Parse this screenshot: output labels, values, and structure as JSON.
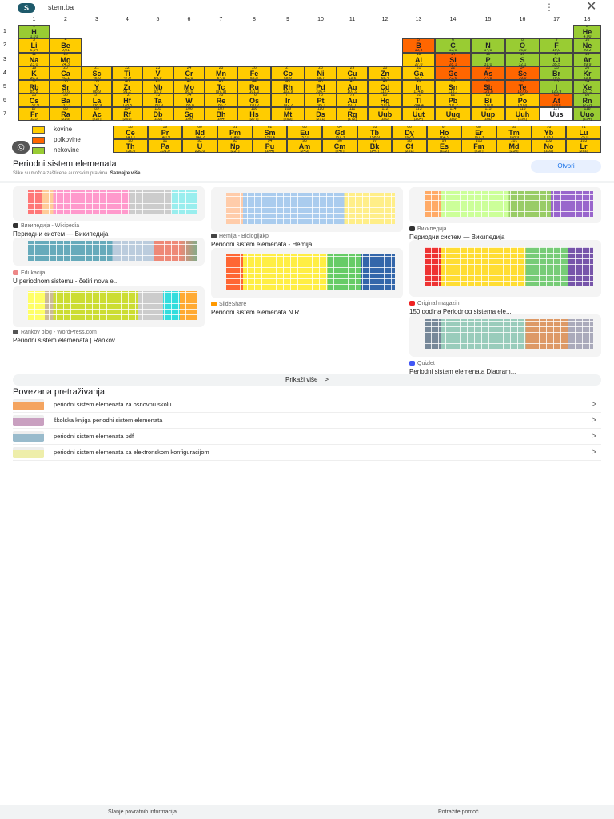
{
  "topbar": {
    "site": "stem.ba",
    "logo": "S",
    "more_icon": "more-vert-icon",
    "close_icon": "close-icon"
  },
  "table": {
    "colors": {
      "metal": "#ffcc00",
      "metalloid": "#ff6600",
      "nonmetal": "#99cc33",
      "unknown": "#ffffff"
    },
    "groups": [
      "1",
      "2",
      "3",
      "4",
      "5",
      "6",
      "7",
      "8",
      "9",
      "10",
      "11",
      "12",
      "13",
      "14",
      "15",
      "16",
      "17",
      "18"
    ],
    "periods": [
      "1",
      "2",
      "3",
      "4",
      "5",
      "6",
      "7"
    ],
    "elements": [
      [
        1,
        "H",
        "1,01",
        1,
        1,
        "nonmetal"
      ],
      [
        2,
        "He",
        "4,00",
        1,
        18,
        "nonmetal"
      ],
      [
        3,
        "Li",
        "6,94",
        2,
        1,
        "metal"
      ],
      [
        4,
        "Be",
        "9,01",
        2,
        2,
        "metal"
      ],
      [
        5,
        "B",
        "10,8",
        2,
        13,
        "metalloid"
      ],
      [
        6,
        "C",
        "12,0",
        2,
        14,
        "nonmetal"
      ],
      [
        7,
        "N",
        "14,0",
        2,
        15,
        "nonmetal"
      ],
      [
        8,
        "O",
        "16,0",
        2,
        16,
        "nonmetal"
      ],
      [
        9,
        "F",
        "19,0",
        2,
        17,
        "nonmetal"
      ],
      [
        10,
        "Ne",
        "20,2",
        2,
        18,
        "nonmetal"
      ],
      [
        11,
        "Na",
        "23,0",
        3,
        1,
        "metal"
      ],
      [
        12,
        "Mg",
        "24,3",
        3,
        2,
        "metal"
      ],
      [
        13,
        "Al",
        "27,0",
        3,
        13,
        "metal"
      ],
      [
        14,
        "Si",
        "28,1",
        3,
        14,
        "metalloid"
      ],
      [
        15,
        "P",
        "31,0",
        3,
        15,
        "nonmetal"
      ],
      [
        16,
        "S",
        "32,1",
        3,
        16,
        "nonmetal"
      ],
      [
        17,
        "Cl",
        "35,5",
        3,
        17,
        "nonmetal"
      ],
      [
        18,
        "Ar",
        "39,9",
        3,
        18,
        "nonmetal"
      ],
      [
        19,
        "K",
        "39,1",
        4,
        1,
        "metal"
      ],
      [
        20,
        "Ca",
        "40,1",
        4,
        2,
        "metal"
      ],
      [
        21,
        "Sc",
        "45,0",
        4,
        3,
        "metal"
      ],
      [
        22,
        "Ti",
        "47,9",
        4,
        4,
        "metal"
      ],
      [
        23,
        "V",
        "50,9",
        4,
        5,
        "metal"
      ],
      [
        24,
        "Cr",
        "52,0",
        4,
        6,
        "metal"
      ],
      [
        25,
        "Mn",
        "54,9",
        4,
        7,
        "metal"
      ],
      [
        26,
        "Fe",
        "55,8",
        4,
        8,
        "metal"
      ],
      [
        27,
        "Co",
        "58,9",
        4,
        9,
        "metal"
      ],
      [
        28,
        "Ni",
        "58,7",
        4,
        10,
        "metal"
      ],
      [
        29,
        "Cu",
        "63,5",
        4,
        11,
        "metal"
      ],
      [
        30,
        "Zn",
        "65,4",
        4,
        12,
        "metal"
      ],
      [
        31,
        "Ga",
        "69,7",
        4,
        13,
        "metal"
      ],
      [
        32,
        "Ge",
        "72,6",
        4,
        14,
        "metalloid"
      ],
      [
        33,
        "As",
        "74,9",
        4,
        15,
        "metalloid"
      ],
      [
        34,
        "Se",
        "79,0",
        4,
        16,
        "metalloid"
      ],
      [
        35,
        "Br",
        "79,9",
        4,
        17,
        "nonmetal"
      ],
      [
        36,
        "Kr",
        "83,8",
        4,
        18,
        "nonmetal"
      ],
      [
        37,
        "Rb",
        "85,5",
        5,
        1,
        "metal"
      ],
      [
        38,
        "Sr",
        "87,6",
        5,
        2,
        "metal"
      ],
      [
        39,
        "Y",
        "88,9",
        5,
        3,
        "metal"
      ],
      [
        40,
        "Zr",
        "91,2",
        5,
        4,
        "metal"
      ],
      [
        41,
        "Nb",
        "92,9",
        5,
        5,
        "metal"
      ],
      [
        42,
        "Mo",
        "96,0",
        5,
        6,
        "metal"
      ],
      [
        43,
        "Tc",
        "[97,9]",
        5,
        7,
        "metal"
      ],
      [
        44,
        "Ru",
        "101,0",
        5,
        8,
        "metal"
      ],
      [
        45,
        "Rh",
        "102,9",
        5,
        9,
        "metal"
      ],
      [
        46,
        "Pd",
        "106,4",
        5,
        10,
        "metal"
      ],
      [
        47,
        "Ag",
        "107,9",
        5,
        11,
        "metal"
      ],
      [
        48,
        "Cd",
        "112,4",
        5,
        12,
        "metal"
      ],
      [
        49,
        "In",
        "114,8",
        5,
        13,
        "metal"
      ],
      [
        50,
        "Sn",
        "118,7",
        5,
        14,
        "metal"
      ],
      [
        51,
        "Sb",
        "121,8",
        5,
        15,
        "metalloid"
      ],
      [
        52,
        "Te",
        "127,6",
        5,
        16,
        "metalloid"
      ],
      [
        53,
        "I",
        "126,9",
        5,
        17,
        "nonmetal"
      ],
      [
        54,
        "Xe",
        "131,3",
        5,
        18,
        "nonmetal"
      ],
      [
        55,
        "Cs",
        "132,9",
        6,
        1,
        "metal"
      ],
      [
        56,
        "Ba",
        "137,3",
        6,
        2,
        "metal"
      ],
      [
        57,
        "La",
        "138,9",
        6,
        3,
        "metal"
      ],
      [
        72,
        "Hf",
        "178,5",
        6,
        4,
        "metal"
      ],
      [
        73,
        "Ta",
        "180,9",
        6,
        5,
        "metal"
      ],
      [
        74,
        "W",
        "183,8",
        6,
        6,
        "metal"
      ],
      [
        75,
        "Re",
        "186,2",
        6,
        7,
        "metal"
      ],
      [
        76,
        "Os",
        "190,2",
        6,
        8,
        "metal"
      ],
      [
        77,
        "Ir",
        "192,2",
        6,
        9,
        "metal"
      ],
      [
        78,
        "Pt",
        "195,1",
        6,
        10,
        "metal"
      ],
      [
        79,
        "Au",
        "197,0",
        6,
        11,
        "metal"
      ],
      [
        80,
        "Hg",
        "200,6",
        6,
        12,
        "metal"
      ],
      [
        81,
        "Tl",
        "204,4",
        6,
        13,
        "metal"
      ],
      [
        82,
        "Pb",
        "207,2",
        6,
        14,
        "metal"
      ],
      [
        83,
        "Bi",
        "209,0",
        6,
        15,
        "metal"
      ],
      [
        84,
        "Po",
        "[209]",
        6,
        16,
        "metal"
      ],
      [
        85,
        "At",
        "[210]",
        6,
        17,
        "metalloid"
      ],
      [
        86,
        "Rn",
        "[222]",
        6,
        18,
        "nonmetal"
      ],
      [
        87,
        "Fr",
        "[223]",
        7,
        1,
        "metal"
      ],
      [
        88,
        "Ra",
        "[226]",
        7,
        2,
        "metal"
      ],
      [
        89,
        "Ac",
        "[227]",
        7,
        3,
        "metal"
      ],
      [
        104,
        "Rf",
        "[261]",
        7,
        4,
        "metal"
      ],
      [
        105,
        "Db",
        "[262]",
        7,
        5,
        "metal"
      ],
      [
        106,
        "Sg",
        "[266]",
        7,
        6,
        "metal"
      ],
      [
        107,
        "Bh",
        "[264]",
        7,
        7,
        "metal"
      ],
      [
        108,
        "Hs",
        "[277]",
        7,
        8,
        "metal"
      ],
      [
        109,
        "Mt",
        "[268]",
        7,
        9,
        "metal"
      ],
      [
        110,
        "Ds",
        "[271]",
        7,
        10,
        "metal"
      ],
      [
        111,
        "Rg",
        "[272]",
        7,
        11,
        "metal"
      ],
      [
        112,
        "Uub",
        "[285]",
        7,
        12,
        "metal"
      ],
      [
        113,
        "Uut",
        "[284]",
        7,
        13,
        "metal"
      ],
      [
        114,
        "Uuq",
        "[289]",
        7,
        14,
        "metal"
      ],
      [
        115,
        "Uup",
        "[288]",
        7,
        15,
        "metal"
      ],
      [
        116,
        "Uuh",
        "[292]",
        7,
        16,
        "metal"
      ],
      [
        117,
        "Uus",
        "",
        7,
        17,
        "unknown"
      ],
      [
        118,
        "Uuo",
        "[294]",
        7,
        18,
        "nonmetal"
      ]
    ],
    "lanthanides": [
      [
        58,
        "Ce",
        "140,1"
      ],
      [
        59,
        "Pr",
        "140,9"
      ],
      [
        60,
        "Nd",
        "144,2"
      ],
      [
        61,
        "Pm",
        "[145]"
      ],
      [
        62,
        "Sm",
        "150,4"
      ],
      [
        63,
        "Eu",
        "152,0"
      ],
      [
        64,
        "Gd",
        "157,3"
      ],
      [
        65,
        "Tb",
        "158,9"
      ],
      [
        66,
        "Dy",
        "162,5"
      ],
      [
        67,
        "Ho",
        "164,9"
      ],
      [
        68,
        "Er",
        "167,3"
      ],
      [
        69,
        "Tm",
        "168,9"
      ],
      [
        70,
        "Yb",
        "173,1"
      ],
      [
        71,
        "Lu",
        "175,0"
      ]
    ],
    "actinides": [
      [
        90,
        "Th",
        "232,0"
      ],
      [
        91,
        "Pa",
        "231,0"
      ],
      [
        92,
        "U",
        "238,0"
      ],
      [
        93,
        "Np",
        "[237]"
      ],
      [
        94,
        "Pu",
        "[244]"
      ],
      [
        95,
        "Am",
        "[243]"
      ],
      [
        96,
        "Cm",
        "[247]"
      ],
      [
        97,
        "Bk",
        "[247]"
      ],
      [
        98,
        "Cf",
        "[251]"
      ],
      [
        99,
        "Es",
        "[252]"
      ],
      [
        100,
        "Fm",
        "[257]"
      ],
      [
        101,
        "Md",
        "[258]"
      ],
      [
        102,
        "No",
        "[259]"
      ],
      [
        103,
        "Lr",
        "[262]"
      ]
    ],
    "legend": [
      {
        "label": "kovine",
        "color": "#ffcc00"
      },
      {
        "label": "polkovine",
        "color": "#ff6600"
      },
      {
        "label": "nekovine",
        "color": "#99cc33"
      }
    ]
  },
  "image": {
    "title": "Periodni sistem elemenata",
    "copyright": "Slike su možda zaštićene autorskim pravima.",
    "learn_more": "Saznajte više",
    "open_label": "Otvori",
    "lens_icon": "lens-icon"
  },
  "related_images": [
    {
      "source": "Википедија - Wikipedia",
      "title": "Периодни систем — Википедија",
      "icon_color": "#333"
    },
    {
      "source": "Edukacija",
      "title": "U periodnom sistemu - četiri nova e...",
      "icon_color": "#e88"
    },
    {
      "source": "Rankov blog - WordPress.com",
      "title": "Periodni sistem elemenata | Rankov...",
      "icon_color": "#555"
    },
    {
      "source": "Hemija - Biologijakp",
      "title": "Periodni sistem elemenata - Hemija",
      "icon_color": "#444"
    },
    {
      "source": "SlideShare",
      "title": "Periodni sistem elemenata N.R.",
      "icon_color": "#f90"
    },
    {
      "source": "Википедија",
      "title": "Периодни систем — Википедија",
      "icon_color": "#333"
    },
    {
      "source": "Original magazin",
      "title": "150 godina Periodnog sistema ele...",
      "icon_color": "#e22"
    },
    {
      "source": "Quizlet",
      "title": "Periodni sistem elemenata Diagram...",
      "icon_color": "#4257f5"
    }
  ],
  "show_more": "Prikaži više",
  "related_searches": {
    "title": "Povezana pretraživanja",
    "items": [
      "periodni sistem elemenata za osnovnu skolu",
      "školska knjiga periodni sistem elemenata",
      "periodni sistem elemenata pdf",
      "periodni sistem elemenata sa elektronskom konfiguracijom"
    ]
  },
  "footer": {
    "feedback": "Slanje povratnih informacija",
    "help": "Potražite pomoć"
  }
}
